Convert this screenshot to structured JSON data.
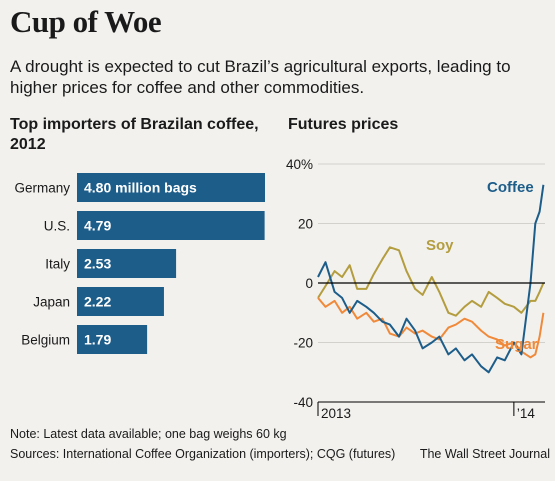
{
  "title": "Cup of Woe",
  "subtitle": "A drought is expected to cut Brazil’s agricultural exports, leading to higher prices for coffee and other commodities.",
  "colors": {
    "background": "#f2f1ee",
    "bar": "#1d5d8a",
    "coffee": "#1d5d8a",
    "soy": "#b39d3e",
    "sugar": "#f08a3a",
    "zero_line": "#000000",
    "grid": "#d3d1cc"
  },
  "chart_data": [
    {
      "type": "bar",
      "orientation": "horizontal",
      "title": "Top importers of Brazilan coffee, 2012",
      "categories": [
        "Germany",
        "U.S.",
        "Italy",
        "Japan",
        "Belgium"
      ],
      "values": [
        4.8,
        4.79,
        2.53,
        2.22,
        1.79
      ],
      "value_labels": [
        "4.80 million bags",
        "4.79",
        "2.53",
        "2.22",
        "1.79"
      ],
      "unit": "million bags",
      "xlim": [
        0,
        4.8
      ],
      "grid": false,
      "legend": "none"
    },
    {
      "type": "line",
      "title": "Futures prices",
      "ylim": [
        -40,
        40
      ],
      "yticks": [
        40,
        20,
        0,
        -20,
        -40
      ],
      "ytick_labels": [
        "40%",
        "20",
        "0",
        "-20",
        "-40"
      ],
      "xlim": [
        "2013-01-01",
        "2014-02-28"
      ],
      "xticks": [
        "2013-01-01",
        "2014-01-01"
      ],
      "xtick_labels": [
        "2013",
        "’14"
      ],
      "grid": true,
      "legend": "inline labels",
      "series": [
        {
          "name": "Coffee",
          "color": "#1d5d8a",
          "x": [
            "2013-01-01",
            "2013-01-15",
            "2013-02-01",
            "2013-02-15",
            "2013-03-01",
            "2013-03-15",
            "2013-04-01",
            "2013-04-15",
            "2013-05-01",
            "2013-05-15",
            "2013-06-01",
            "2013-06-15",
            "2013-07-01",
            "2013-07-15",
            "2013-08-01",
            "2013-08-15",
            "2013-09-01",
            "2013-09-15",
            "2013-10-01",
            "2013-10-15",
            "2013-11-01",
            "2013-11-15",
            "2013-12-01",
            "2013-12-15",
            "2014-01-01",
            "2014-01-15",
            "2014-02-01",
            "2014-02-10",
            "2014-02-18",
            "2014-02-25"
          ],
          "y": [
            2,
            7,
            -3,
            -5,
            -10,
            -6,
            -8,
            -10,
            -13,
            -14,
            -18,
            -12,
            -16,
            -22,
            -20,
            -18,
            -24,
            -22,
            -26,
            -24,
            -28,
            -30,
            -25,
            -26,
            -20,
            -24,
            0,
            20,
            24,
            33
          ]
        },
        {
          "name": "Soy",
          "color": "#b39d3e",
          "x": [
            "2013-01-01",
            "2013-01-15",
            "2013-02-01",
            "2013-02-15",
            "2013-03-01",
            "2013-03-15",
            "2013-04-01",
            "2013-04-15",
            "2013-05-01",
            "2013-05-15",
            "2013-06-01",
            "2013-06-15",
            "2013-07-01",
            "2013-07-15",
            "2013-08-01",
            "2013-08-15",
            "2013-09-01",
            "2013-09-15",
            "2013-10-01",
            "2013-10-15",
            "2013-11-01",
            "2013-11-15",
            "2013-12-01",
            "2013-12-15",
            "2014-01-01",
            "2014-01-15",
            "2014-02-01",
            "2014-02-10",
            "2014-02-18",
            "2014-02-25"
          ],
          "y": [
            -5,
            -1,
            4,
            2,
            6,
            -2,
            -2,
            3,
            8,
            12,
            11,
            4,
            -2,
            -4,
            2,
            -3,
            -10,
            -11,
            -8,
            -6,
            -8,
            -3,
            -5,
            -7,
            -8,
            -10,
            -6,
            -6,
            -3,
            0
          ]
        },
        {
          "name": "Sugar",
          "color": "#f08a3a",
          "x": [
            "2013-01-01",
            "2013-01-15",
            "2013-02-01",
            "2013-02-15",
            "2013-03-01",
            "2013-03-15",
            "2013-04-01",
            "2013-04-15",
            "2013-05-01",
            "2013-05-15",
            "2013-06-01",
            "2013-06-15",
            "2013-07-01",
            "2013-07-15",
            "2013-08-01",
            "2013-08-15",
            "2013-09-01",
            "2013-09-15",
            "2013-10-01",
            "2013-10-15",
            "2013-11-01",
            "2013-11-15",
            "2013-12-01",
            "2013-12-15",
            "2014-01-01",
            "2014-01-15",
            "2014-02-01",
            "2014-02-10",
            "2014-02-18",
            "2014-02-25"
          ],
          "y": [
            -5,
            -8,
            -6,
            -10,
            -8,
            -12,
            -10,
            -13,
            -12,
            -17,
            -18,
            -15,
            -17,
            -16,
            -18,
            -19,
            -15,
            -14,
            -12,
            -13,
            -16,
            -18,
            -19,
            -21,
            -20,
            -23,
            -25,
            -24,
            -18,
            -10
          ]
        }
      ]
    }
  ],
  "notes": {
    "note": "Note: Latest data available; one bag weighs 60 kg",
    "sources": "Sources: International Coffee Organization (importers); CQG (futures)",
    "credit": "The Wall Street Journal"
  }
}
